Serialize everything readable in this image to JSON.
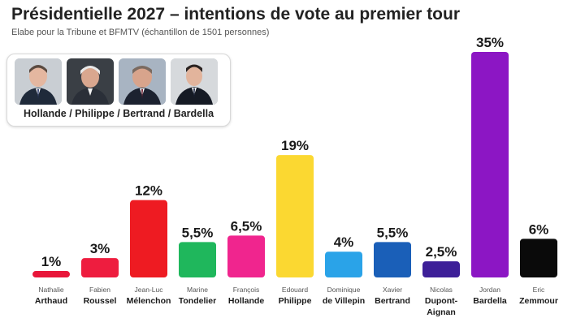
{
  "header": {
    "title": "Présidentielle 2027 – intentions de vote au premier tour",
    "subtitle": "Elabe pour la Tribune et  BFMTV (échantillon de 1501 personnes)"
  },
  "candidates_box": {
    "caption": "Hollande / Philippe / Bertrand / Bardella",
    "photos": [
      "portrait-hollande",
      "portrait-philippe",
      "portrait-bertrand",
      "portrait-bardella"
    ]
  },
  "chart_data": {
    "type": "bar",
    "title": "Présidentielle 2027 – intentions de vote au premier tour",
    "xlabel": "",
    "ylabel": "",
    "ylim": [
      0,
      35
    ],
    "grid": false,
    "categories": [
      {
        "first": "Nathalie",
        "last": "Arthaud"
      },
      {
        "first": "Fabien",
        "last": "Roussel"
      },
      {
        "first": "Jean-Luc",
        "last": "Mélenchon"
      },
      {
        "first": "Marine",
        "last": "Tondelier"
      },
      {
        "first": "François",
        "last": "Hollande"
      },
      {
        "first": "Edouard",
        "last": "Philippe"
      },
      {
        "first": "Dominique",
        "last": "de Villepin"
      },
      {
        "first": "Xavier",
        "last": "Bertrand"
      },
      {
        "first": "Nicolas",
        "last": "Dupont-Aignan"
      },
      {
        "first": "Jordan",
        "last": "Bardella"
      },
      {
        "first": "Eric",
        "last": "Zemmour"
      }
    ],
    "values": [
      1,
      3,
      12,
      5.5,
      6.5,
      19,
      4,
      5.5,
      2.5,
      35,
      6
    ],
    "labels": [
      "1%",
      "3%",
      "12%",
      "5,5%",
      "6,5%",
      "19%",
      "4%",
      "5,5%",
      "2,5%",
      "35%",
      "6%"
    ],
    "colors": [
      "#e8163a",
      "#ee1d3f",
      "#ee1b22",
      "#1fb75c",
      "#f0258e",
      "#fbd831",
      "#2aa3e8",
      "#1a5fb8",
      "#3d1f98",
      "#8c16c4",
      "#0a0a0a"
    ]
  }
}
